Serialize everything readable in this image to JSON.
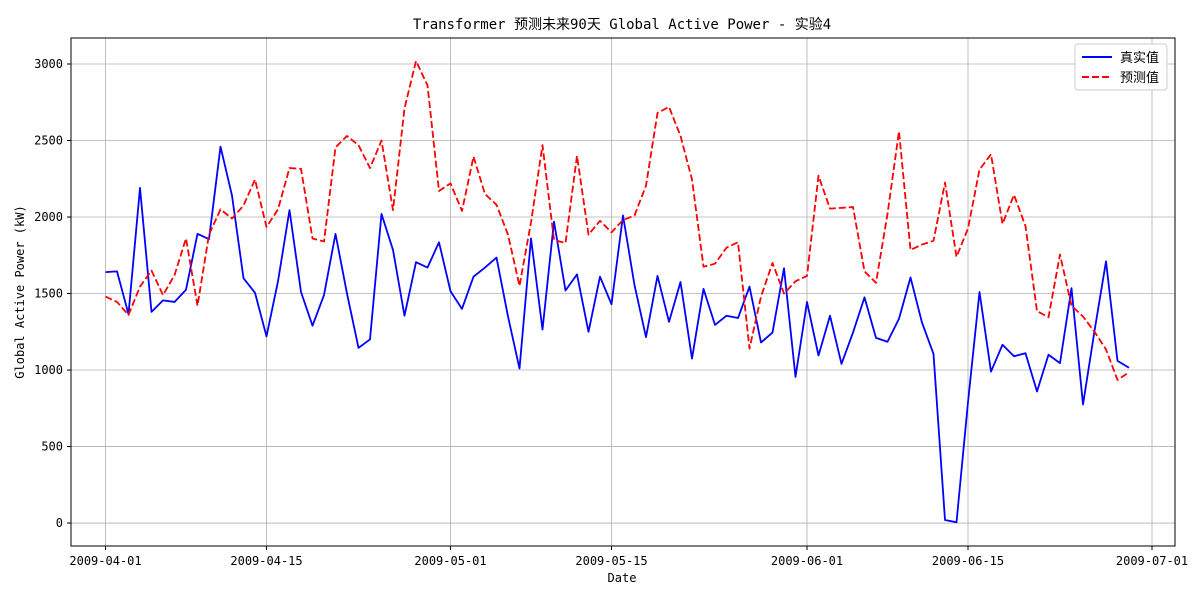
{
  "chart_data": {
    "type": "line",
    "title": "Transformer 预测未来90天 Global Active Power - 实验4",
    "xlabel": "Date",
    "ylabel": "Global Active Power (kW)",
    "xlim": [
      "2009-03-29",
      "2009-07-03"
    ],
    "ylim": [
      -150,
      3170
    ],
    "x_ticks": [
      "2009-04-01",
      "2009-04-15",
      "2009-05-01",
      "2009-05-15",
      "2009-06-01",
      "2009-06-15",
      "2009-07-01"
    ],
    "y_ticks": [
      0,
      500,
      1000,
      1500,
      2000,
      2500,
      3000
    ],
    "grid": true,
    "legend_position": "top-right",
    "x_start": "2009-04-01",
    "x_step_days": 1,
    "series": [
      {
        "name": "真实值",
        "color": "#0000ff",
        "style": "solid",
        "values": [
          1640,
          1645,
          1365,
          2190,
          1380,
          1455,
          1445,
          1525,
          1890,
          1855,
          2460,
          2140,
          1600,
          1505,
          1220,
          1580,
          2045,
          1510,
          1290,
          1490,
          1890,
          1500,
          1145,
          1200,
          2020,
          1785,
          1355,
          1705,
          1670,
          1835,
          1515,
          1400,
          1610,
          1670,
          1735,
          1350,
          1010,
          1860,
          1265,
          1970,
          1520,
          1625,
          1250,
          1610,
          1430,
          2010,
          1555,
          1215,
          1615,
          1315,
          1575,
          1075,
          1530,
          1295,
          1355,
          1340,
          1545,
          1180,
          1245,
          1665,
          955,
          1445,
          1095,
          1355,
          1040,
          1245,
          1475,
          1210,
          1185,
          1335,
          1605,
          1310,
          1105,
          20,
          5,
          790,
          1510,
          990,
          1165,
          1090,
          1110,
          860,
          1100,
          1045,
          1535,
          775,
          1255,
          1710,
          1060,
          1015
        ]
      },
      {
        "name": "预测值",
        "color": "#ff0000",
        "style": "dashed",
        "values": [
          1480,
          1445,
          1360,
          1545,
          1650,
          1490,
          1620,
          1860,
          1420,
          1885,
          2050,
          1990,
          2075,
          2245,
          1935,
          2050,
          2320,
          2315,
          1860,
          1840,
          2455,
          2530,
          2470,
          2320,
          2500,
          2045,
          2710,
          3020,
          2860,
          2170,
          2220,
          2040,
          2395,
          2150,
          2080,
          1885,
          1550,
          1965,
          2470,
          1850,
          1830,
          2400,
          1885,
          1975,
          1900,
          1980,
          2010,
          2205,
          2680,
          2720,
          2530,
          2245,
          1675,
          1695,
          1800,
          1835,
          1140,
          1480,
          1700,
          1500,
          1580,
          1615,
          2270,
          2055,
          2060,
          2065,
          1645,
          1570,
          2020,
          2560,
          1785,
          1820,
          1845,
          2225,
          1740,
          1925,
          2310,
          2410,
          1955,
          2145,
          1940,
          1385,
          1345,
          1755,
          1420,
          1350,
          1250,
          1135,
          935,
          985
        ]
      }
    ]
  }
}
